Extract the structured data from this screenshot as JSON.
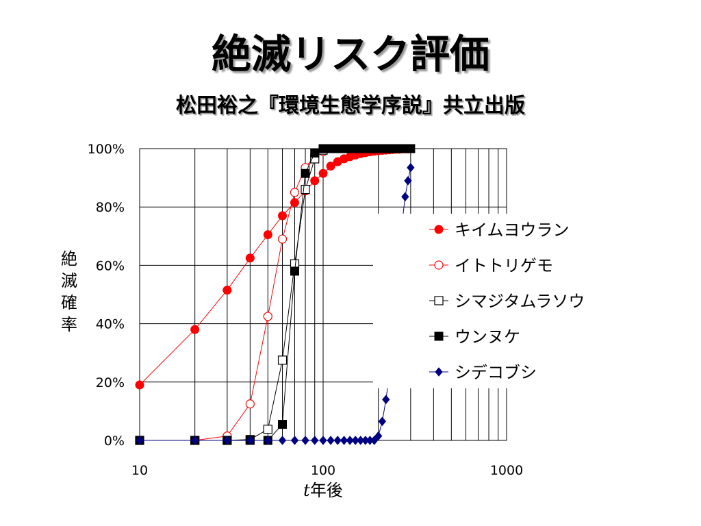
{
  "title": "絶滅リスク評価",
  "subtitle": "松田裕之『環境生態学序説』共立出版",
  "chart_data": {
    "type": "line",
    "x_scale": "log",
    "xlim": [
      10,
      1000
    ],
    "ylim": [
      0,
      100
    ],
    "x_ticks": [
      "10",
      "100",
      "1000"
    ],
    "y_ticks": [
      "0%",
      "20%",
      "40%",
      "60%",
      "80%",
      "100%"
    ],
    "y_tick_values": [
      0,
      20,
      40,
      60,
      80,
      100
    ],
    "x_tick_values": [
      10,
      100,
      1000
    ],
    "ylabel": "絶滅確率",
    "xlabel_italic": "t",
    "xlabel": "年後",
    "grid": true,
    "legend_position": "right",
    "series": [
      {
        "name": "キイムヨウラン",
        "color": "#ff0000",
        "marker": "circle-filled",
        "x": [
          10,
          20,
          30,
          40,
          50,
          60,
          70,
          80,
          90,
          100,
          110,
          120,
          130,
          140,
          150,
          160,
          170,
          180,
          190,
          200,
          210,
          220,
          230,
          240,
          250,
          260,
          270,
          280,
          290,
          300
        ],
        "y": [
          19,
          38,
          51.5,
          62.5,
          70.5,
          77,
          81.5,
          85.5,
          89,
          91.5,
          94,
          95.5,
          96.5,
          97.2,
          97.8,
          98.3,
          98.6,
          98.9,
          99.1,
          99.3,
          99.4,
          99.5,
          99.6,
          99.7,
          99.8,
          99.8,
          99.9,
          99.9,
          99.9,
          100
        ]
      },
      {
        "name": "イトトリゲモ",
        "color": "#ff0000",
        "marker": "circle-open",
        "x": [
          10,
          20,
          30,
          40,
          50,
          60,
          70,
          80,
          90,
          100
        ],
        "y": [
          0,
          0,
          1.5,
          12.5,
          42.5,
          69,
          85,
          93.5,
          97.5,
          99
        ]
      },
      {
        "name": "シマジタムラソウ",
        "color": "#000000",
        "marker": "square-open",
        "x": [
          10,
          20,
          30,
          40,
          50,
          60,
          70,
          80,
          90,
          100
        ],
        "y": [
          0,
          0,
          0,
          0.3,
          3.8,
          27.5,
          60.5,
          86,
          96.5,
          99.5
        ]
      },
      {
        "name": "ウンヌケ",
        "color": "#000000",
        "marker": "square-filled",
        "x": [
          10,
          20,
          30,
          40,
          50,
          60,
          70,
          80,
          90,
          100,
          110,
          120,
          130,
          140,
          150,
          160,
          170,
          180,
          190,
          200,
          210,
          220,
          230,
          240,
          250,
          260,
          270,
          280,
          290,
          300
        ],
        "y": [
          0,
          0,
          0,
          0,
          0,
          5.5,
          58,
          91.5,
          98.5,
          100,
          100,
          100,
          100,
          100,
          100,
          100,
          100,
          100,
          100,
          100,
          100,
          100,
          100,
          100,
          100,
          100,
          100,
          100,
          100,
          100
        ]
      },
      {
        "name": "シデコブシ",
        "color": "#000080",
        "marker": "diamond-filled",
        "x": [
          10,
          20,
          30,
          40,
          50,
          60,
          70,
          80,
          90,
          100,
          110,
          120,
          130,
          140,
          150,
          160,
          170,
          180,
          190,
          200,
          210,
          220,
          230,
          240,
          250,
          260,
          270,
          280,
          290,
          300
        ],
        "y": [
          0,
          0,
          0,
          0,
          0,
          0,
          0,
          0,
          0,
          0,
          0,
          0,
          0,
          0,
          0,
          0,
          0,
          0,
          0,
          1.5,
          6.5,
          14,
          23,
          36,
          51,
          65,
          75,
          83.5,
          89,
          93.5
        ]
      }
    ]
  }
}
